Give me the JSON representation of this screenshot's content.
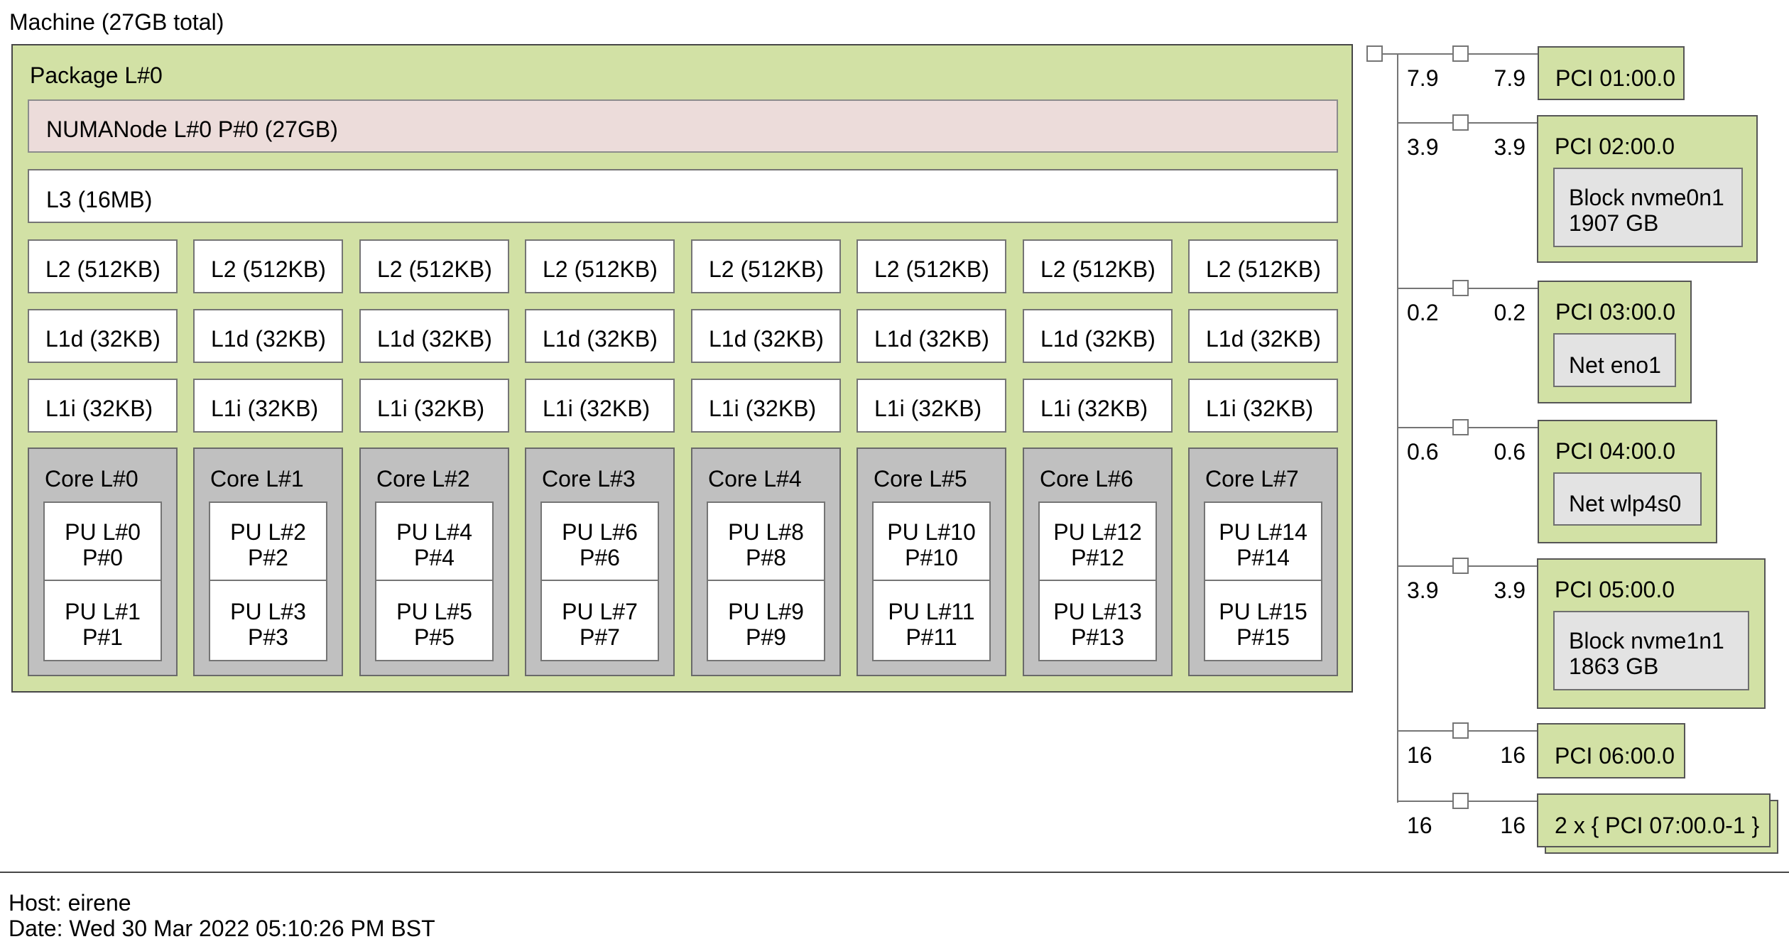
{
  "title": "Machine (27GB total)",
  "package": {
    "label": "Package L#0",
    "numanode_label": "NUMANode L#0 P#0 (27GB)",
    "l3_label": "L3 (16MB)",
    "l2": [
      "L2 (512KB)",
      "L2 (512KB)",
      "L2 (512KB)",
      "L2 (512KB)",
      "L2 (512KB)",
      "L2 (512KB)",
      "L2 (512KB)",
      "L2 (512KB)"
    ],
    "l1d": [
      "L1d (32KB)",
      "L1d (32KB)",
      "L1d (32KB)",
      "L1d (32KB)",
      "L1d (32KB)",
      "L1d (32KB)",
      "L1d (32KB)",
      "L1d (32KB)"
    ],
    "l1i": [
      "L1i (32KB)",
      "L1i (32KB)",
      "L1i (32KB)",
      "L1i (32KB)",
      "L1i (32KB)",
      "L1i (32KB)",
      "L1i (32KB)",
      "L1i (32KB)"
    ],
    "cores": [
      {
        "label": "Core L#0",
        "pus": [
          {
            "line1": "PU L#0",
            "line2": "P#0"
          },
          {
            "line1": "PU L#1",
            "line2": "P#1"
          }
        ]
      },
      {
        "label": "Core L#1",
        "pus": [
          {
            "line1": "PU L#2",
            "line2": "P#2"
          },
          {
            "line1": "PU L#3",
            "line2": "P#3"
          }
        ]
      },
      {
        "label": "Core L#2",
        "pus": [
          {
            "line1": "PU L#4",
            "line2": "P#4"
          },
          {
            "line1": "PU L#5",
            "line2": "P#5"
          }
        ]
      },
      {
        "label": "Core L#3",
        "pus": [
          {
            "line1": "PU L#6",
            "line2": "P#6"
          },
          {
            "line1": "PU L#7",
            "line2": "P#7"
          }
        ]
      },
      {
        "label": "Core L#4",
        "pus": [
          {
            "line1": "PU L#8",
            "line2": "P#8"
          },
          {
            "line1": "PU L#9",
            "line2": "P#9"
          }
        ]
      },
      {
        "label": "Core L#5",
        "pus": [
          {
            "line1": "PU L#10",
            "line2": "P#10"
          },
          {
            "line1": "PU L#11",
            "line2": "P#11"
          }
        ]
      },
      {
        "label": "Core L#6",
        "pus": [
          {
            "line1": "PU L#12",
            "line2": "P#12"
          },
          {
            "line1": "PU L#13",
            "line2": "P#13"
          }
        ]
      },
      {
        "label": "Core L#7",
        "pus": [
          {
            "line1": "PU L#14",
            "line2": "P#14"
          },
          {
            "line1": "PU L#15",
            "line2": "P#15"
          }
        ]
      }
    ]
  },
  "pci_tree": {
    "branches": [
      {
        "label": "PCI 01:00.0",
        "speed_left": "7.9",
        "speed_right": "7.9"
      },
      {
        "label": "PCI 02:00.0",
        "speed_left": "3.9",
        "speed_right": "3.9",
        "device": {
          "lines": [
            "Block nvme0n1",
            "1907 GB"
          ]
        }
      },
      {
        "label": "PCI 03:00.0",
        "speed_left": "0.2",
        "speed_right": "0.2",
        "device": {
          "lines": [
            "Net eno1"
          ]
        }
      },
      {
        "label": "PCI 04:00.0",
        "speed_left": "0.6",
        "speed_right": "0.6",
        "device": {
          "lines": [
            "Net wlp4s0"
          ]
        }
      },
      {
        "label": "PCI 05:00.0",
        "speed_left": "3.9",
        "speed_right": "3.9",
        "device": {
          "lines": [
            "Block nvme1n1",
            "1863 GB"
          ]
        }
      },
      {
        "label": "PCI 06:00.0",
        "speed_left": "16",
        "speed_right": "16"
      },
      {
        "label": "2 x { PCI 07:00.0-1 }",
        "speed_left": "16",
        "speed_right": "16",
        "stacked": true
      }
    ]
  },
  "footer": {
    "host": "Host: eirene",
    "date": "Date: Wed 30 Mar 2022 05:10:26 PM BST"
  },
  "colors": {
    "box_green": "#d2e1a5",
    "numa_pink": "#ecdcda",
    "core_gray": "#c0c0c0",
    "device_gray": "#e3e3e3",
    "border_dark": "#474747",
    "border_gray": "#757575"
  }
}
